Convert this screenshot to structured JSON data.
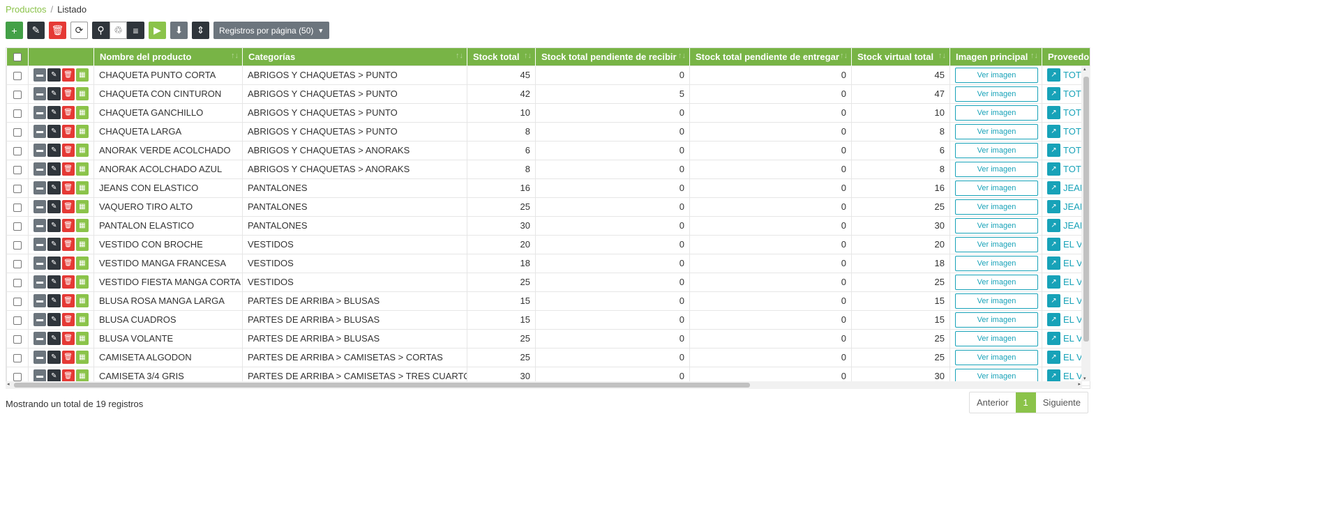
{
  "breadcrumb": {
    "parent": "Productos",
    "separator": "/",
    "current": "Listado"
  },
  "toolbar": {
    "add_icon": "+",
    "edit_icon": "✎",
    "delete_icon": "🗑",
    "refresh_icon": "⟳",
    "search_icon": "⚲",
    "recycle_icon": "♲",
    "database_icon": "≡",
    "play_icon": "▶",
    "download_icon": "⬇",
    "sort_icon": "⇕",
    "records_label": "Registros por página (50)",
    "records_caret": "▼"
  },
  "table": {
    "headers": {
      "name": "Nombre del producto",
      "categories": "Categorías",
      "stock_total": "Stock total",
      "stock_pending_receive": "Stock total pendiente de recibir",
      "stock_pending_deliver": "Stock total pendiente de entregar",
      "stock_virtual": "Stock virtual total",
      "image": "Imagen principal",
      "provider": "Proveedor"
    },
    "sort_icon": "↑↓",
    "view_image_label": "Ver imagen",
    "row_action_icons": {
      "folder": "▬",
      "edit": "✎",
      "delete": "🗑",
      "stock": "▦"
    },
    "provider_icon": "↗",
    "rows": [
      {
        "name": "CHAQUETA PUNTO CORTA",
        "category": "ABRIGOS Y CHAQUETAS > PUNTO",
        "stock": "45",
        "receive": "0",
        "deliver": "0",
        "virtual": "45",
        "provider": "TOTO"
      },
      {
        "name": "CHAQUETA CON CINTURON",
        "category": "ABRIGOS Y CHAQUETAS > PUNTO",
        "stock": "42",
        "receive": "5",
        "deliver": "0",
        "virtual": "47",
        "provider": "TOTO"
      },
      {
        "name": "CHAQUETA GANCHILLO",
        "category": "ABRIGOS Y CHAQUETAS > PUNTO",
        "stock": "10",
        "receive": "0",
        "deliver": "0",
        "virtual": "10",
        "provider": "TOTO"
      },
      {
        "name": "CHAQUETA LARGA",
        "category": "ABRIGOS Y CHAQUETAS > PUNTO",
        "stock": "8",
        "receive": "0",
        "deliver": "0",
        "virtual": "8",
        "provider": "TOTO"
      },
      {
        "name": "ANORAK VERDE ACOLCHADO",
        "category": "ABRIGOS Y CHAQUETAS > ANORAKS",
        "stock": "6",
        "receive": "0",
        "deliver": "0",
        "virtual": "6",
        "provider": "TOTO"
      },
      {
        "name": "ANORAK ACOLCHADO AZUL",
        "category": "ABRIGOS Y CHAQUETAS > ANORAKS",
        "stock": "8",
        "receive": "0",
        "deliver": "0",
        "virtual": "8",
        "provider": "TOTO"
      },
      {
        "name": "JEANS CON ELASTICO",
        "category": "PANTALONES",
        "stock": "16",
        "receive": "0",
        "deliver": "0",
        "virtual": "16",
        "provider": "JEAN"
      },
      {
        "name": "VAQUERO TIRO ALTO",
        "category": "PANTALONES",
        "stock": "25",
        "receive": "0",
        "deliver": "0",
        "virtual": "25",
        "provider": "JEAN"
      },
      {
        "name": "PANTALON ELASTICO",
        "category": "PANTALONES",
        "stock": "30",
        "receive": "0",
        "deliver": "0",
        "virtual": "30",
        "provider": "JEAN"
      },
      {
        "name": "VESTIDO CON BROCHE",
        "category": "VESTIDOS",
        "stock": "20",
        "receive": "0",
        "deliver": "0",
        "virtual": "20",
        "provider": "EL V"
      },
      {
        "name": "VESTIDO MANGA FRANCESA",
        "category": "VESTIDOS",
        "stock": "18",
        "receive": "0",
        "deliver": "0",
        "virtual": "18",
        "provider": "EL V"
      },
      {
        "name": "VESTIDO FIESTA MANGA CORTA",
        "category": "VESTIDOS",
        "stock": "25",
        "receive": "0",
        "deliver": "0",
        "virtual": "25",
        "provider": "EL V"
      },
      {
        "name": "BLUSA ROSA MANGA LARGA",
        "category": "PARTES DE ARRIBA > BLUSAS",
        "stock": "15",
        "receive": "0",
        "deliver": "0",
        "virtual": "15",
        "provider": "EL V"
      },
      {
        "name": "BLUSA CUADROS",
        "category": "PARTES DE ARRIBA > BLUSAS",
        "stock": "15",
        "receive": "0",
        "deliver": "0",
        "virtual": "15",
        "provider": "EL V"
      },
      {
        "name": "BLUSA VOLANTE",
        "category": "PARTES DE ARRIBA > BLUSAS",
        "stock": "25",
        "receive": "0",
        "deliver": "0",
        "virtual": "25",
        "provider": "EL V"
      },
      {
        "name": "CAMISETA ALGODON",
        "category": "PARTES DE ARRIBA > CAMISETAS > CORTAS",
        "stock": "25",
        "receive": "0",
        "deliver": "0",
        "virtual": "25",
        "provider": "EL V"
      },
      {
        "name": "CAMISETA 3/4 GRIS",
        "category": "PARTES DE ARRIBA > CAMISETAS > TRES CUARTOS",
        "stock": "30",
        "receive": "0",
        "deliver": "0",
        "virtual": "30",
        "provider": "EL V"
      }
    ]
  },
  "scroll": {
    "left": "◂",
    "right": "▸",
    "up": "▴",
    "down": "▾"
  },
  "footer": {
    "summary": "Mostrando un total de 19 registros"
  },
  "pagination": {
    "prev": "Anterior",
    "page": "1",
    "next": "Siguiente"
  },
  "colors": {
    "accent": "#8bc34a",
    "header": "#78b446",
    "info": "#17a2b8",
    "danger": "#e53935",
    "dark": "#2f353b"
  }
}
